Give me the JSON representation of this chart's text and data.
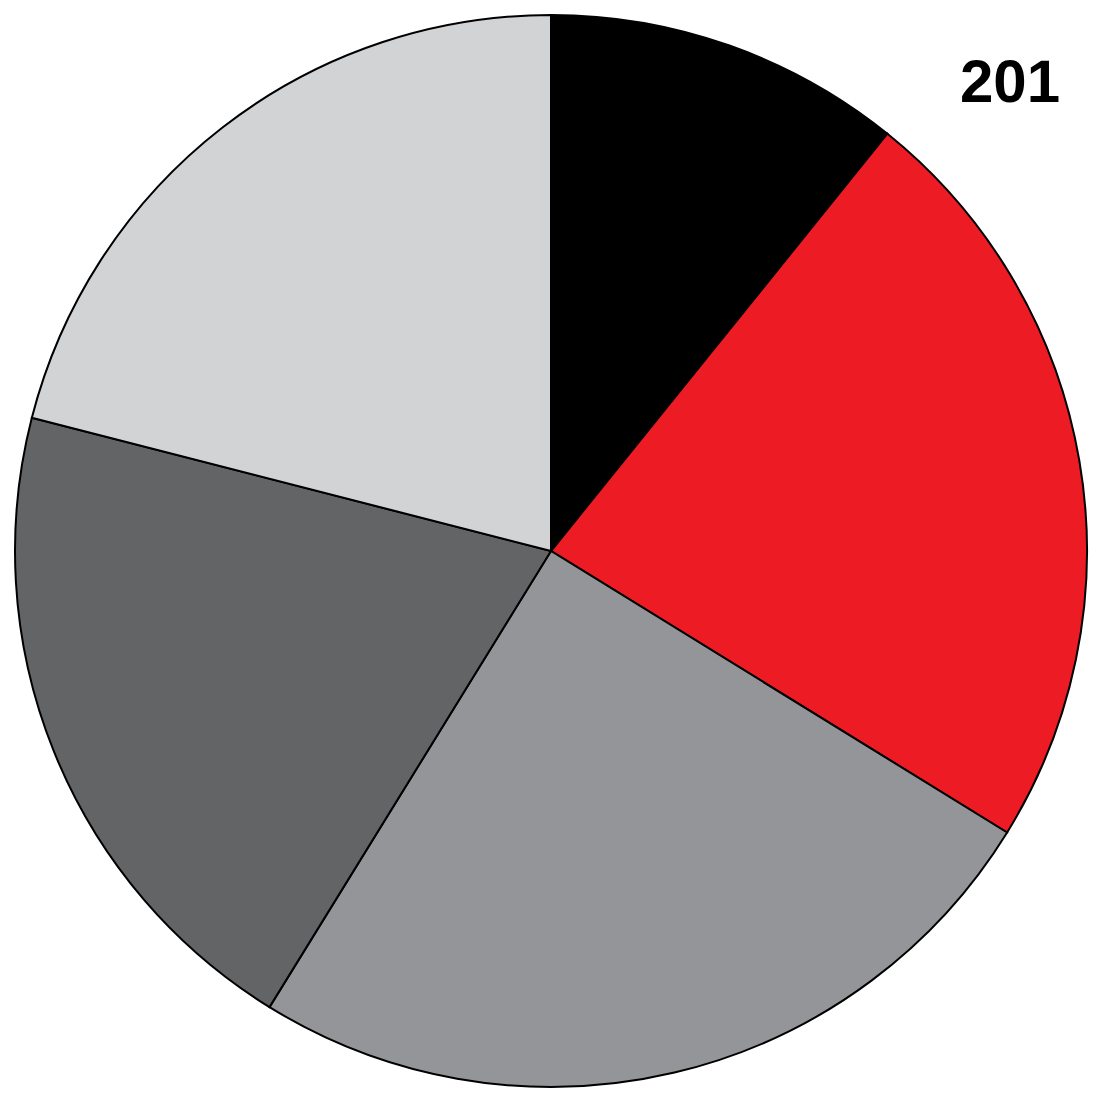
{
  "chart_data": {
    "type": "pie",
    "title": "201",
    "categories": [
      null,
      null,
      null,
      null,
      null
    ],
    "values": [
      10.8,
      23,
      25,
      20.2,
      21
    ],
    "colors": [
      "#000000",
      "#ed1c24",
      "#939598",
      "#636466",
      "#d1d3d4"
    ]
  }
}
